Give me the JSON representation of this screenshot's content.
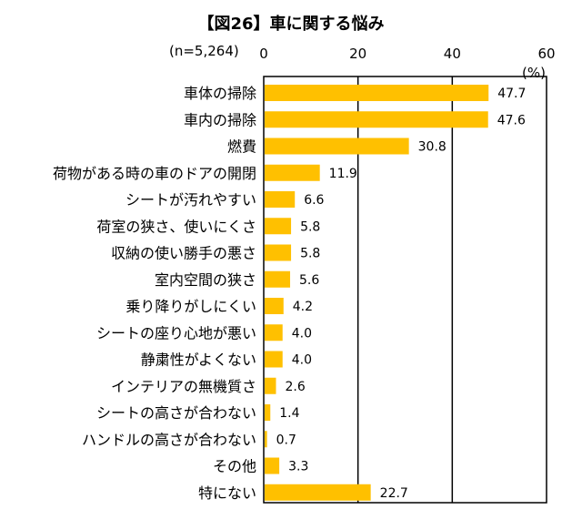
{
  "chart_data": {
    "type": "bar",
    "orientation": "horizontal",
    "title": "【図26】車に関する悩み",
    "sample_note": "(n=5,264)",
    "unit": "(%)",
    "xlim": [
      0,
      60
    ],
    "ticks": [
      "0",
      "20",
      "40",
      "60"
    ],
    "tick_values": [
      0,
      20,
      40,
      60
    ],
    "grid": true,
    "bar_color": "#FFC000",
    "categories": [
      "車体の掃除",
      "車内の掃除",
      "燃費",
      "荷物がある時の車のドアの開閉",
      "シートが汚れやすい",
      "荷室の狭さ、使いにくさ",
      "収納の使い勝手の悪さ",
      "室内空間の狭さ",
      "乗り降りがしにくい",
      "シートの座り心地が悪い",
      "静粛性がよくない",
      "インテリアの無機質さ",
      "シートの高さが合わない",
      "ハンドルの高さが合わない",
      "その他",
      "特にない"
    ],
    "values": [
      47.7,
      47.6,
      30.8,
      11.9,
      6.6,
      5.8,
      5.8,
      5.6,
      4.2,
      4.0,
      4.0,
      2.6,
      1.4,
      0.7,
      3.3,
      22.7
    ],
    "value_labels": [
      "47.7",
      "47.6",
      "30.8",
      "11.9",
      "6.6",
      "5.8",
      "5.8",
      "5.6",
      "4.2",
      "4.0",
      "4.0",
      "2.6",
      "1.4",
      "0.7",
      "3.3",
      "22.7"
    ]
  }
}
